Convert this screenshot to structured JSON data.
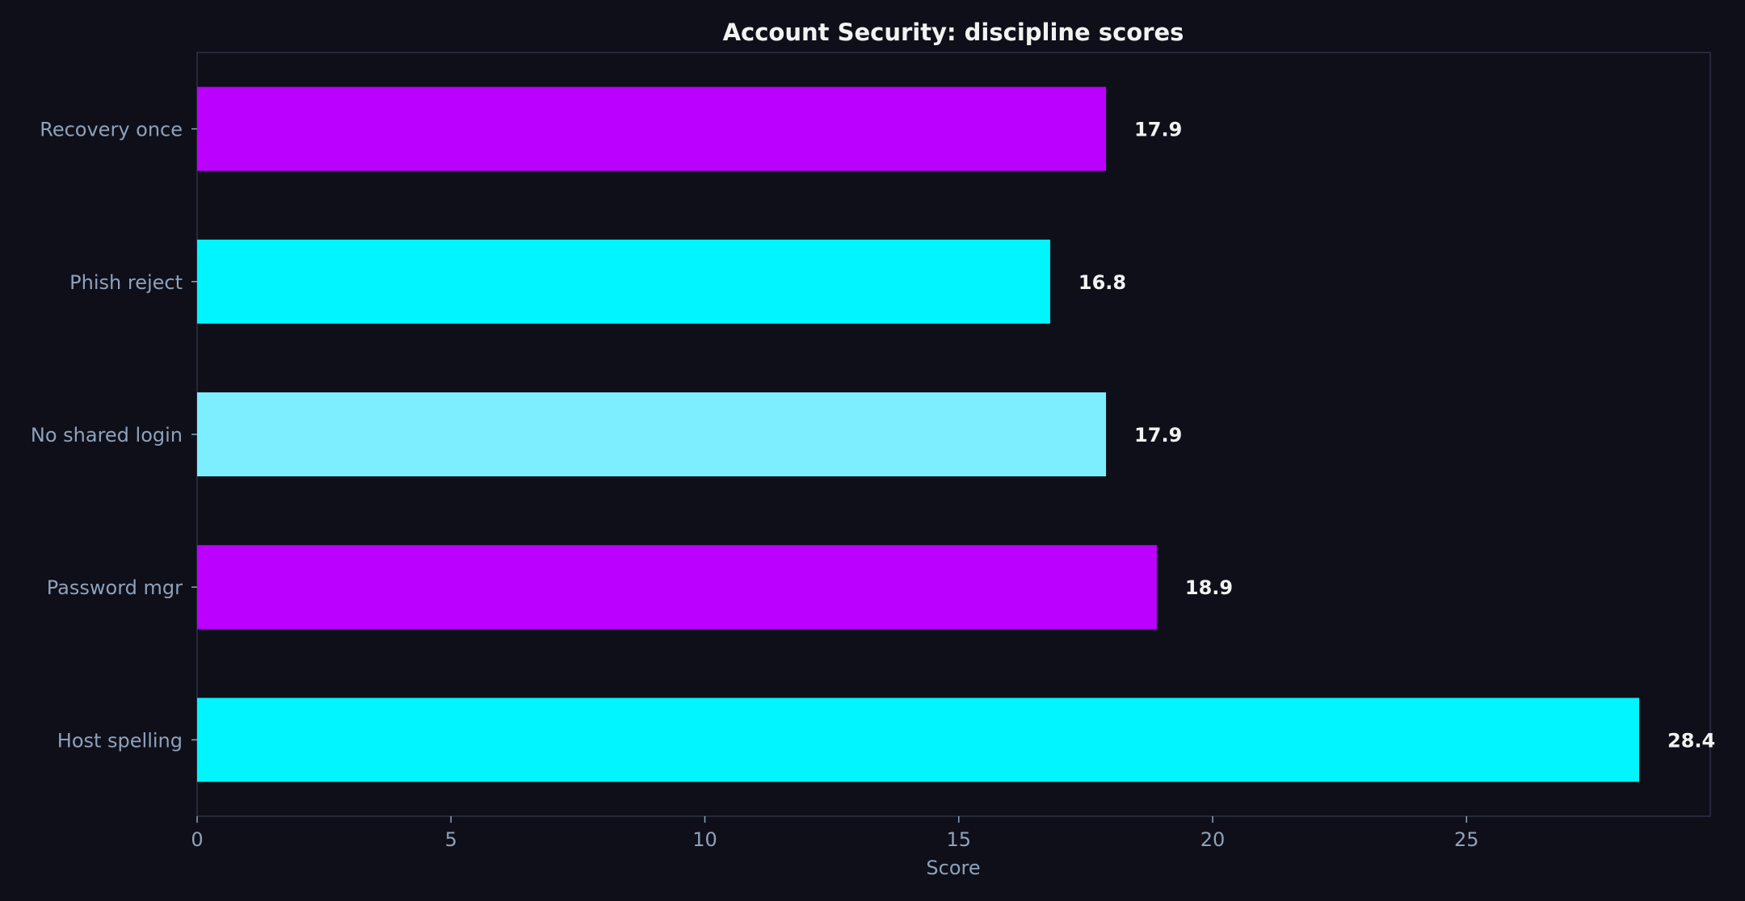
{
  "chart_data": {
    "type": "bar",
    "orientation": "horizontal",
    "title": "Account Security: discipline scores",
    "xlabel": "Score",
    "ylabel": "",
    "categories": [
      "Recovery once",
      "Phish reject",
      "No shared login",
      "Password mgr",
      "Host spelling"
    ],
    "values": [
      17.9,
      16.8,
      17.9,
      18.9,
      28.4
    ],
    "value_labels": [
      "17.9",
      "16.8",
      "17.9",
      "18.9",
      "28.4"
    ],
    "bar_colors": [
      "#bb00ff",
      "#00f5ff",
      "#7deeff",
      "#bb00ff",
      "#00f5ff"
    ],
    "xlim": [
      0,
      29.8
    ],
    "xticks": [
      0,
      5,
      10,
      15,
      20,
      25
    ],
    "xtick_labels": [
      "0",
      "5",
      "10",
      "15",
      "20",
      "25"
    ],
    "grid": false,
    "legend": "none",
    "colors": {
      "background": "#0f0f1a",
      "frame": "#2e3046",
      "tick_text": "#8ea2ba",
      "title_text": "#f2f2f2",
      "value_text": "#f2f2f2"
    }
  }
}
